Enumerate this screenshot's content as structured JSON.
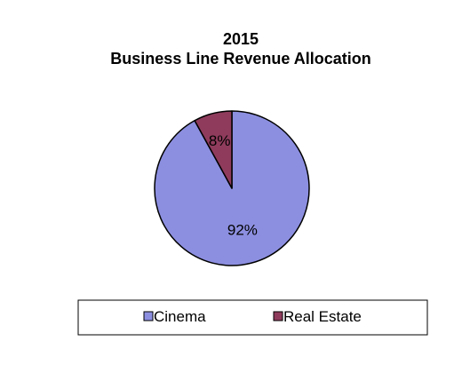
{
  "chart_data": {
    "type": "pie",
    "title": "2015",
    "subtitle": "Business Line Revenue Allocation",
    "categories": [
      "Cinema",
      "Real Estate"
    ],
    "values": [
      92,
      8
    ],
    "data_labels": [
      "92%",
      "8%"
    ],
    "colors": [
      "#8c8fe0",
      "#8f3c5c"
    ],
    "legend_position": "bottom",
    "start_angle": "12 o'clock",
    "direction": "clockwise"
  }
}
